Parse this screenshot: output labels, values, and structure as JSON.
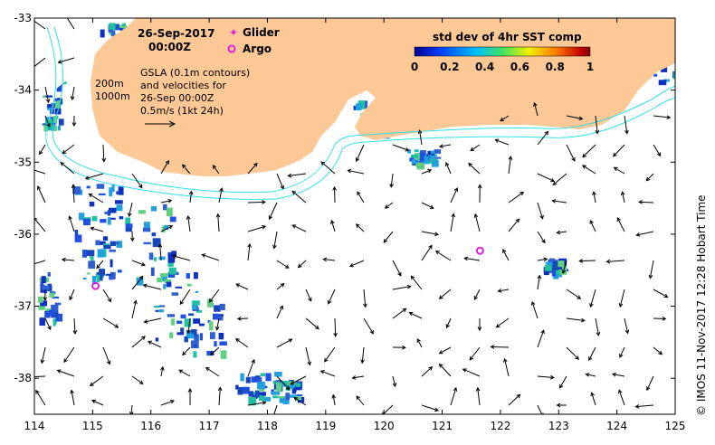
{
  "map": {
    "date": "26-Sep-2017",
    "time": "00:00Z",
    "lon_range": [
      114,
      125
    ],
    "lat_range": [
      -38.5,
      -33
    ],
    "x_ticks": [
      "114",
      "115",
      "116",
      "117",
      "118",
      "119",
      "120",
      "121",
      "122",
      "123",
      "124",
      "125"
    ],
    "y_ticks": [
      "-33",
      "-34",
      "-35",
      "-36",
      "-37",
      "-38"
    ],
    "legend": {
      "glider": "Glider",
      "argo": "Argo"
    },
    "isobaths": [
      "200m",
      "1000m"
    ],
    "gsla_note": [
      "GSLA (0.1m contours)",
      "and velocities for",
      "26-Sep 00:00Z",
      "0.5m/s (1kt 24h)"
    ],
    "colorbar": {
      "title": "std dev of 4hr SST comp",
      "ticks": [
        "0",
        "0.2",
        "0.4",
        "0.6",
        "0.8",
        "1"
      ]
    },
    "credit": "© IMOS 11-Nov-2017 12:28 Hobart Time",
    "colors": {
      "land": "#fcc896",
      "isobath": "#30e0e8",
      "argo": "#e020e0",
      "glider": "#e020e0",
      "sst_low": "#1030c0",
      "sst_mid": "#20c0a0"
    },
    "argo_floats": [
      {
        "lon": 115.05,
        "lat": -36.72
      },
      {
        "lon": 121.65,
        "lat": -36.23
      }
    ]
  }
}
